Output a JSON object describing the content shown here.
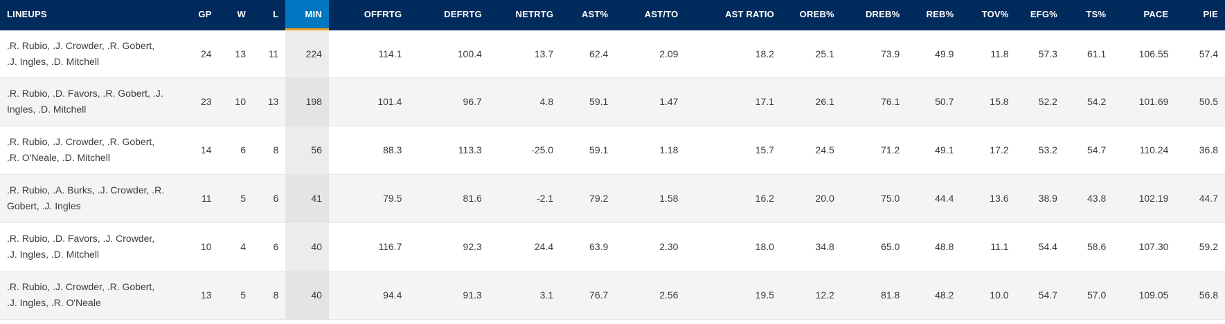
{
  "table": {
    "headers": [
      "LINEUPS",
      "GP",
      "W",
      "L",
      "MIN",
      "OFFRTG",
      "DEFRTG",
      "NETRTG",
      "AST%",
      "AST/TO",
      "AST RATIO",
      "OREB%",
      "DREB%",
      "REB%",
      "TOV%",
      "EFG%",
      "TS%",
      "PACE",
      "PIE"
    ],
    "sorted_column": "MIN",
    "rows": [
      [
        ".R. Rubio, .J. Crowder, .R. Gobert, .J. Ingles, .D. Mitchell",
        "24",
        "13",
        "11",
        "224",
        "114.1",
        "100.4",
        "13.7",
        "62.4",
        "2.09",
        "18.2",
        "25.1",
        "73.9",
        "49.9",
        "11.8",
        "57.3",
        "61.1",
        "106.55",
        "57.4"
      ],
      [
        ".R. Rubio, .D. Favors, .R. Gobert, .J. Ingles, .D. Mitchell",
        "23",
        "10",
        "13",
        "198",
        "101.4",
        "96.7",
        "4.8",
        "59.1",
        "1.47",
        "17.1",
        "26.1",
        "76.1",
        "50.7",
        "15.8",
        "52.2",
        "54.2",
        "101.69",
        "50.5"
      ],
      [
        ".R. Rubio, .J. Crowder, .R. Gobert, .R. O'Neale, .D. Mitchell",
        "14",
        "6",
        "8",
        "56",
        "88.3",
        "113.3",
        "-25.0",
        "59.1",
        "1.18",
        "15.7",
        "24.5",
        "71.2",
        "49.1",
        "17.2",
        "53.2",
        "54.7",
        "110.24",
        "36.8"
      ],
      [
        ".R. Rubio, .A. Burks, .J. Crowder, .R. Gobert, .J. Ingles",
        "11",
        "5",
        "6",
        "41",
        "79.5",
        "81.6",
        "-2.1",
        "79.2",
        "1.58",
        "16.2",
        "20.0",
        "75.0",
        "44.4",
        "13.6",
        "38.9",
        "43.8",
        "102.19",
        "44.7"
      ],
      [
        ".R. Rubio, .D. Favors, .J. Crowder, .J. Ingles, .D. Mitchell",
        "10",
        "4",
        "6",
        "40",
        "116.7",
        "92.3",
        "24.4",
        "63.9",
        "2.30",
        "18.0",
        "34.8",
        "65.0",
        "48.8",
        "11.1",
        "54.4",
        "58.6",
        "107.30",
        "59.2"
      ],
      [
        ".R. Rubio, .J. Crowder, .R. Gobert, .J. Ingles, .R. O'Neale",
        "13",
        "5",
        "8",
        "40",
        "94.4",
        "91.3",
        "3.1",
        "76.7",
        "2.56",
        "19.5",
        "12.2",
        "81.8",
        "48.2",
        "10.0",
        "54.7",
        "57.0",
        "109.05",
        "56.8"
      ]
    ]
  },
  "colors": {
    "header_bg": "#002b5c",
    "sorted_header_bg": "#0077c0",
    "sorted_underline": "#f9a01b"
  }
}
